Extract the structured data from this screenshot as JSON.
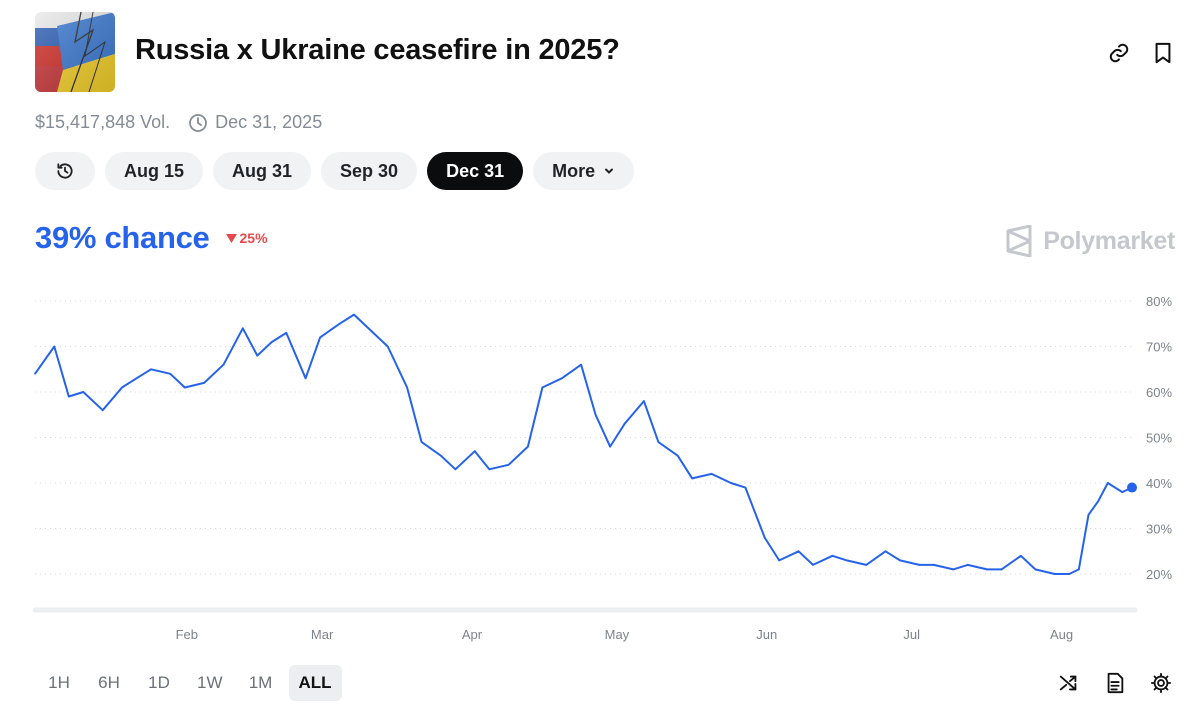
{
  "market": {
    "title": "Russia x Ukraine ceasefire in 2025?",
    "volume": "$15,417,848 Vol.",
    "end_date": "Dec 31, 2025"
  },
  "header_actions": {
    "link_icon": "link-icon",
    "bookmark_icon": "bookmark-icon"
  },
  "date_pills": {
    "history_icon": "history-icon",
    "items": [
      "Aug 15",
      "Aug 31",
      "Sep 30",
      "Dec 31"
    ],
    "selected": "Dec 31",
    "more_label": "More"
  },
  "outcome": {
    "chance": "39% chance",
    "delta": "25%",
    "delta_direction": "down"
  },
  "brand": "Polymarket",
  "colors": {
    "accent": "#2563eb",
    "negative": "#e5484d",
    "active_pill": "#0b0c0e"
  },
  "chart_data": {
    "type": "line",
    "y_ticks": [
      "80%",
      "70%",
      "60%",
      "50%",
      "40%",
      "30%",
      "20%"
    ],
    "x_ticks": [
      "Feb",
      "Mar",
      "Apr",
      "May",
      "Jun",
      "Jul",
      "Aug"
    ],
    "ylim": [
      12,
      83
    ],
    "y_scale": "percent",
    "grid": "horizontal dotted",
    "x": [
      "Jan 1",
      "Jan 5",
      "Jan 8",
      "Jan 11",
      "Jan 15",
      "Jan 19",
      "Jan 22",
      "Jan 25",
      "Jan 29",
      "Feb 1",
      "Feb 5",
      "Feb 9",
      "Feb 13",
      "Feb 16",
      "Feb 19",
      "Feb 22",
      "Feb 26",
      "Mar 1",
      "Mar 5",
      "Mar 8",
      "Mar 12",
      "Mar 15",
      "Mar 19",
      "Mar 22",
      "Mar 26",
      "Mar 29",
      "Apr 2",
      "Apr 5",
      "Apr 9",
      "Apr 13",
      "Apr 16",
      "Apr 20",
      "Apr 24",
      "Apr 27",
      "Apr 30",
      "May 3",
      "May 7",
      "May 10",
      "May 14",
      "May 17",
      "May 21",
      "May 25",
      "May 28",
      "Jun 1",
      "Jun 4",
      "Jun 8",
      "Jun 11",
      "Jun 15",
      "Jun 18",
      "Jun 22",
      "Jun 26",
      "Jun 29",
      "Jul 3",
      "Jul 6",
      "Jul 10",
      "Jul 13",
      "Jul 17",
      "Jul 20",
      "Jul 24",
      "Jul 27",
      "Jul 31",
      "Aug 3",
      "Aug 5",
      "Aug 7",
      "Aug 9",
      "Aug 11",
      "Aug 14",
      "Aug 16"
    ],
    "series": [
      {
        "values": [
          64,
          70,
          59,
          60,
          56,
          61,
          63,
          65,
          64,
          61,
          62,
          66,
          74,
          68,
          71,
          73,
          63,
          72,
          75,
          77,
          73,
          70,
          61,
          49,
          46,
          43,
          47,
          43,
          44,
          48,
          61,
          63,
          66,
          55,
          48,
          53,
          58,
          49,
          46,
          41,
          42,
          40,
          39,
          28,
          23,
          25,
          22,
          24,
          23,
          22,
          25,
          23,
          22,
          22,
          21,
          22,
          21,
          21,
          24,
          21,
          20,
          20,
          21,
          33,
          36,
          40,
          38,
          39
        ]
      }
    ]
  },
  "time_ranges": {
    "items": [
      "1H",
      "6H",
      "1D",
      "1W",
      "1M",
      "ALL"
    ],
    "selected": "ALL"
  },
  "chart_tools": {
    "items": [
      "shuffle-icon",
      "document-icon",
      "gear-icon"
    ]
  }
}
